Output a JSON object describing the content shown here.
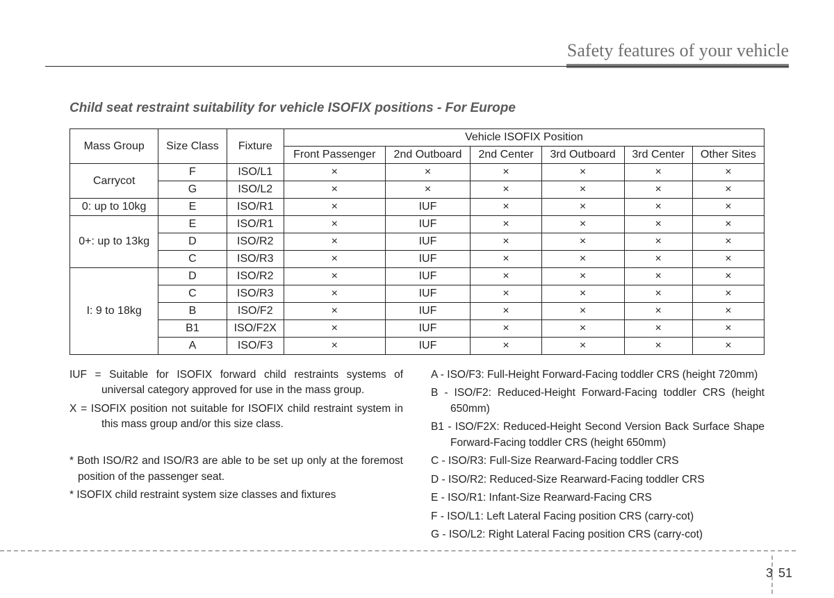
{
  "header": {
    "chapter_title": "Safety features of your vehicle"
  },
  "section": {
    "title": "Child seat restraint suitability for vehicle ISOFIX positions - For Europe"
  },
  "table": {
    "head": {
      "mass_group": "Mass Group",
      "size_class": "Size Class",
      "fixture": "Fixture",
      "vehicle_pos": "Vehicle ISOFIX Position",
      "cols": [
        "Front Passenger",
        "2nd Outboard",
        "2nd Center",
        "3rd Outboard",
        "3rd Center",
        "Other Sites"
      ]
    },
    "groups": [
      {
        "label": "Carrycot",
        "rows": [
          {
            "size": "F",
            "fixture": "ISO/L1",
            "v": [
              "×",
              "×",
              "×",
              "×",
              "×",
              "×"
            ]
          },
          {
            "size": "G",
            "fixture": "ISO/L2",
            "v": [
              "×",
              "×",
              "×",
              "×",
              "×",
              "×"
            ]
          }
        ]
      },
      {
        "label": "0: up to 10kg",
        "rows": [
          {
            "size": "E",
            "fixture": "ISO/R1",
            "v": [
              "×",
              "IUF",
              "×",
              "×",
              "×",
              "×"
            ]
          }
        ]
      },
      {
        "label": "0+: up to 13kg",
        "rows": [
          {
            "size": "E",
            "fixture": "ISO/R1",
            "v": [
              "×",
              "IUF",
              "×",
              "×",
              "×",
              "×"
            ]
          },
          {
            "size": "D",
            "fixture": "ISO/R2",
            "v": [
              "×",
              "IUF",
              "×",
              "×",
              "×",
              "×"
            ]
          },
          {
            "size": "C",
            "fixture": "ISO/R3",
            "v": [
              "×",
              "IUF",
              "×",
              "×",
              "×",
              "×"
            ]
          }
        ]
      },
      {
        "label": "I:  9  to 18kg",
        "rows": [
          {
            "size": "D",
            "fixture": "ISO/R2",
            "v": [
              "×",
              "IUF",
              "×",
              "×",
              "×",
              "×"
            ]
          },
          {
            "size": "C",
            "fixture": "ISO/R3",
            "v": [
              "×",
              "IUF",
              "×",
              "×",
              "×",
              "×"
            ]
          },
          {
            "size": "B",
            "fixture": "ISO/F2",
            "v": [
              "×",
              "IUF",
              "×",
              "×",
              "×",
              "×"
            ]
          },
          {
            "size": "B1",
            "fixture": "ISO/F2X",
            "v": [
              "×",
              "IUF",
              "×",
              "×",
              "×",
              "×"
            ]
          },
          {
            "size": "A",
            "fixture": "ISO/F3",
            "v": [
              "×",
              "IUF",
              "×",
              "×",
              "×",
              "×"
            ]
          }
        ]
      }
    ]
  },
  "legend_left": [
    "IUF = Suitable for ISOFIX forward child restraints systems of universal category approved for use in the mass group.",
    "X = ISOFIX position not suitable for ISOFIX child restraint system in this mass group and/or this size class.",
    "",
    "* Both ISO/R2 and ISO/R3 are able to be set up only at the foremost position of the passenger seat.",
    "* ISOFIX child restraint system size classes and fixtures"
  ],
  "legend_right": [
    "A - ISO/F3: Full-Height Forward-Facing toddler CRS (height 720mm)",
    "B - ISO/F2: Reduced-Height Forward-Facing toddler CRS (height 650mm)",
    "B1 - ISO/F2X: Reduced-Height Second Version Back Surface Shape Forward-Facing toddler CRS (height 650mm)",
    "C - ISO/R3: Full-Size Rearward-Facing toddler CRS",
    "D - ISO/R2: Reduced-Size Rearward-Facing toddler CRS",
    "E - ISO/R1: Infant-Size Rearward-Facing CRS",
    "F - ISO/L1: Left Lateral Facing position CRS (carry-cot)",
    "G - ISO/L2: Right Lateral Facing position CRS (carry-cot)"
  ],
  "footer": {
    "section": "3",
    "page": "51"
  }
}
